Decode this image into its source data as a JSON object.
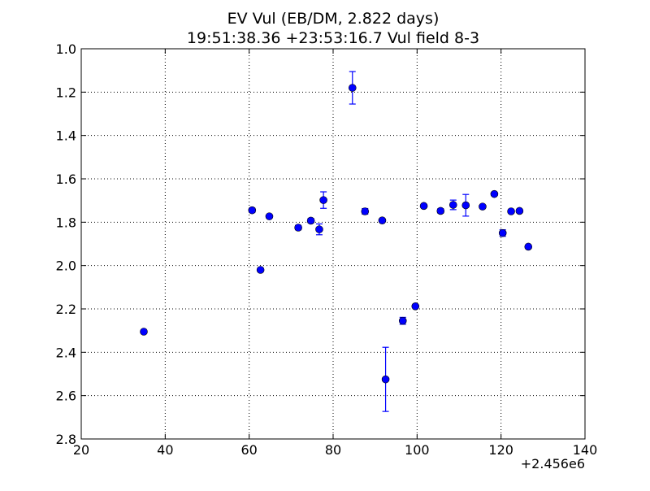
{
  "chart_data": {
    "type": "scatter",
    "title": "EV Vul (EB/DM, 2.822 days)",
    "subtitle": "19:51:38.36 +23:53:16.7 Vul field 8-3",
    "xlabel": "",
    "ylabel": "",
    "x_offset_label": "+2.456e6",
    "xlim": [
      20,
      140
    ],
    "ylim": [
      2.8,
      1.0
    ],
    "y_inverted": true,
    "grid": true,
    "x_ticks": [
      20,
      40,
      60,
      80,
      100,
      120,
      140
    ],
    "x_tick_labels": [
      "20",
      "40",
      "60",
      "80",
      "100",
      "120",
      "140"
    ],
    "y_ticks": [
      1.0,
      1.2,
      1.4,
      1.6,
      1.8,
      2.0,
      2.2,
      2.4,
      2.6,
      2.8
    ],
    "y_tick_labels": [
      "1.0",
      "1.2",
      "1.4",
      "1.6",
      "1.8",
      "2.0",
      "2.2",
      "2.4",
      "2.6",
      "2.8"
    ],
    "color": "#0000ff",
    "points": [
      {
        "x": 34.9,
        "y": 2.305,
        "err": 0.0
      },
      {
        "x": 60.7,
        "y": 1.745,
        "err": 0.01
      },
      {
        "x": 62.7,
        "y": 2.02,
        "err": 0.0
      },
      {
        "x": 64.8,
        "y": 1.773,
        "err": 0.0
      },
      {
        "x": 71.7,
        "y": 1.825,
        "err": 0.01
      },
      {
        "x": 74.7,
        "y": 1.793,
        "err": 0.01
      },
      {
        "x": 76.7,
        "y": 1.833,
        "err": 0.025
      },
      {
        "x": 77.7,
        "y": 1.698,
        "err": 0.038
      },
      {
        "x": 84.6,
        "y": 1.18,
        "err": 0.075
      },
      {
        "x": 87.6,
        "y": 1.75,
        "err": 0.013
      },
      {
        "x": 91.7,
        "y": 1.792,
        "err": 0.0
      },
      {
        "x": 92.5,
        "y": 2.525,
        "err": 0.148
      },
      {
        "x": 96.6,
        "y": 2.255,
        "err": 0.016
      },
      {
        "x": 99.6,
        "y": 2.188,
        "err": 0.0
      },
      {
        "x": 101.6,
        "y": 1.725,
        "err": 0.0
      },
      {
        "x": 105.6,
        "y": 1.748,
        "err": 0.01
      },
      {
        "x": 108.6,
        "y": 1.72,
        "err": 0.022
      },
      {
        "x": 111.6,
        "y": 1.722,
        "err": 0.05
      },
      {
        "x": 115.6,
        "y": 1.728,
        "err": 0.0
      },
      {
        "x": 118.4,
        "y": 1.67,
        "err": 0.0
      },
      {
        "x": 120.4,
        "y": 1.85,
        "err": 0.015
      },
      {
        "x": 122.4,
        "y": 1.75,
        "err": 0.0
      },
      {
        "x": 124.4,
        "y": 1.748,
        "err": 0.0
      },
      {
        "x": 126.5,
        "y": 1.913,
        "err": 0.0
      }
    ]
  }
}
